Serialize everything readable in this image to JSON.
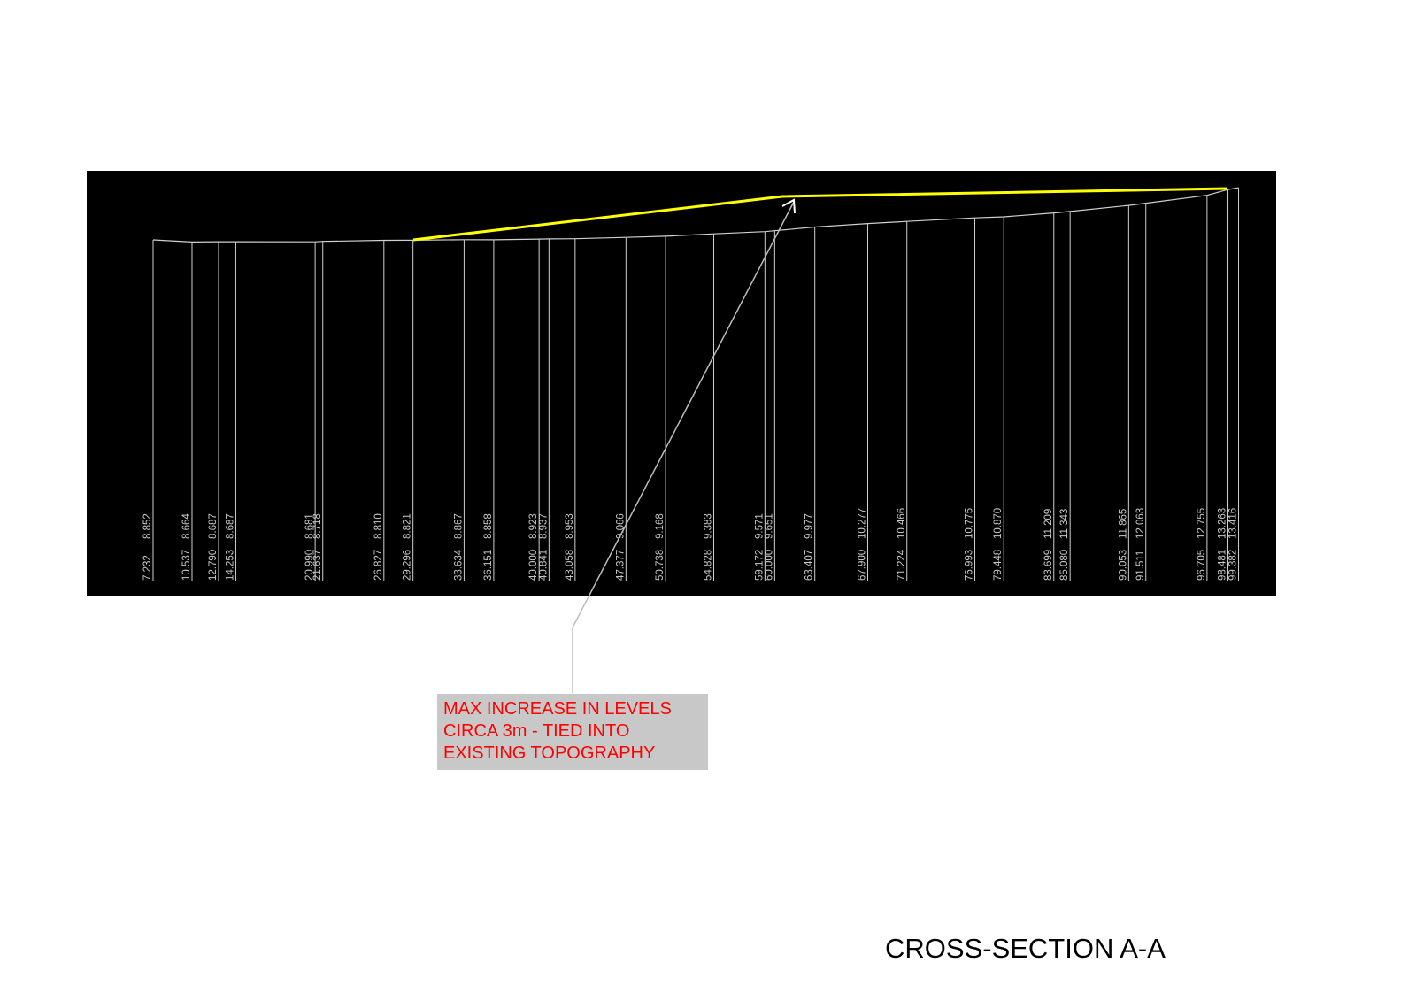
{
  "section": {
    "title": "CROSS-SECTION A-A",
    "annotation": [
      "MAX INCREASE IN LEVELS",
      "CIRCA 3m - TIED INTO",
      "EXISTING TOPOGRAPHY"
    ],
    "stations": [
      {
        "chainage": "7.232",
        "level": "8.852"
      },
      {
        "chainage": "10.537",
        "level": "8.664"
      },
      {
        "chainage": "12.790",
        "level": "8.687"
      },
      {
        "chainage": "14.253",
        "level": "8.687"
      },
      {
        "chainage": "20.990",
        "level": "8.681"
      },
      {
        "chainage": "21.637",
        "level": "8.718"
      },
      {
        "chainage": "26.827",
        "level": "8.810"
      },
      {
        "chainage": "29.296",
        "level": "8.821"
      },
      {
        "chainage": "33.634",
        "level": "8.867"
      },
      {
        "chainage": "36.151",
        "level": "8.858"
      },
      {
        "chainage": "40.000",
        "level": "8.923"
      },
      {
        "chainage": "40.841",
        "level": "8.937"
      },
      {
        "chainage": "43.058",
        "level": "8.953"
      },
      {
        "chainage": "47.377",
        "level": "9.066"
      },
      {
        "chainage": "50.738",
        "level": "9.168"
      },
      {
        "chainage": "54.828",
        "level": "9.383"
      },
      {
        "chainage": "59.172",
        "level": "9.571"
      },
      {
        "chainage": "60.000",
        "level": "9.651"
      },
      {
        "chainage": "63.407",
        "level": "9.977"
      },
      {
        "chainage": "67.900",
        "level": "10.277"
      },
      {
        "chainage": "71.224",
        "level": "10.466"
      },
      {
        "chainage": "76.993",
        "level": "10.775"
      },
      {
        "chainage": "79.448",
        "level": "10.870"
      },
      {
        "chainage": "83.699",
        "level": "11.209"
      },
      {
        "chainage": "85.080",
        "level": "11.343"
      },
      {
        "chainage": "90.053",
        "level": "11.865"
      },
      {
        "chainage": "91.511",
        "level": "12.063"
      },
      {
        "chainage": "96.705",
        "level": "12.755"
      },
      {
        "chainage": "98.481",
        "level": "13.263"
      },
      {
        "chainage": "99.382",
        "level": "13.416"
      }
    ]
  }
}
